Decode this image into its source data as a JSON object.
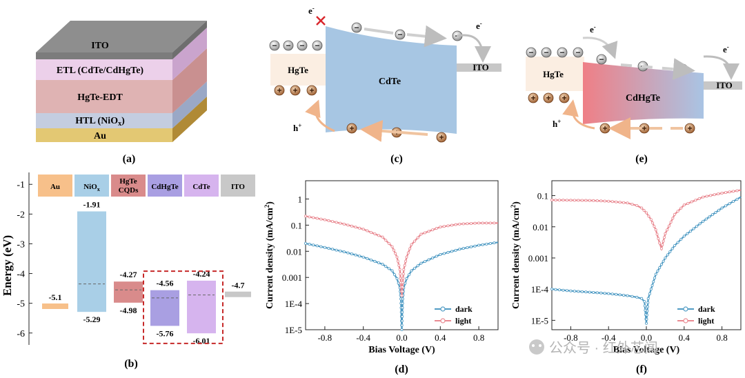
{
  "panel_labels": {
    "a": "(a)",
    "b": "(b)",
    "c": "(c)",
    "d": "(d)",
    "e": "(e)",
    "f": "(f)"
  },
  "stack_layers": [
    {
      "name": "ITO",
      "color": "#9a9a9a"
    },
    {
      "name": "ETL (CdTe/CdHgTe)",
      "color": "#e8c8e6"
    },
    {
      "name": "HgTe-EDT",
      "color": "#d8a8a8"
    },
    {
      "name": "HTL (NiO",
      "sub": "x",
      "suffix": ")",
      "color": "#c0c8dc"
    },
    {
      "name": "Au",
      "color": "#e7cf8c"
    }
  ],
  "schem_c": {
    "left": "HgTe",
    "middle": "CdTe",
    "right": "ITO",
    "electron": "e",
    "hole": "h",
    "minus": "−",
    "plus": "+",
    "sup_e": "-",
    "sup_h": "+"
  },
  "schem_e": {
    "left": "HgTe",
    "middle": "CdHgTe",
    "right": "ITO",
    "electron": "e",
    "hole": "h",
    "minus": "−",
    "plus": "+",
    "sup_e": "-",
    "sup_h": "+"
  },
  "watermark": "公众号 · 红外芯闻",
  "chart_data": [
    {
      "type": "bar",
      "id": "b",
      "ylabel": "Energy  (eV)",
      "ylim": [
        -6.4,
        -0.6
      ],
      "yticks": [
        -1,
        -2,
        -3,
        -4,
        -5,
        -6
      ],
      "header_labels": [
        {
          "text": "Au",
          "color": "#f7c08a"
        },
        {
          "text": "NiO",
          "sub": "x",
          "color": "#a9cfe7"
        },
        {
          "text": "HgTe",
          "text2": "CQDs",
          "color": "#d98b8b"
        },
        {
          "text": "CdHgTe",
          "color": "#a99fe2"
        },
        {
          "text": "CdTe",
          "color": "#d6b4ee"
        },
        {
          "text": "ITO",
          "color": "#c8c8c8"
        }
      ],
      "bars": [
        {
          "material": "Au",
          "level": -5.1,
          "label": "-5.1",
          "color": "#f7c08a"
        },
        {
          "material": "NiOx",
          "top": -1.91,
          "bottom": -5.29,
          "top_label": "-1.91",
          "bottom_label": "-5.29",
          "fermi": -4.35,
          "color": "#a9cfe7"
        },
        {
          "material": "HgTe CQDs",
          "top": -4.27,
          "bottom": -4.98,
          "top_label": "-4.27",
          "bottom_label": "-4.98",
          "fermi": -4.55,
          "color": "#d98b8b"
        },
        {
          "material": "CdHgTe",
          "top": -4.56,
          "bottom": -5.76,
          "top_label": "-4.56",
          "bottom_label": "-5.76",
          "fermi": -4.82,
          "color": "#a99fe2"
        },
        {
          "material": "CdTe",
          "top": -4.24,
          "bottom": -6.01,
          "top_label": "-4.24",
          "bottom_label": "-6.01",
          "fermi": -4.72,
          "color": "#d6b4ee"
        },
        {
          "material": "ITO",
          "level": -4.7,
          "label": "-4.7",
          "color": "#c8c8c8"
        }
      ]
    },
    {
      "type": "line",
      "id": "d",
      "xlabel": "Bias Voltage  (V)",
      "ylabel": "Current density  (mA/cm",
      "ylabel_sup": "2",
      "ylabel_end": ")",
      "log_y": true,
      "xlim": [
        -1.0,
        1.0
      ],
      "ylim": [
        1e-05,
        5
      ],
      "xticks": [
        -0.8,
        -0.4,
        0.0,
        0.4,
        0.8
      ],
      "xtick_labels": [
        "-0.8",
        "-0.4",
        "0.0",
        "0.4",
        "0.8"
      ],
      "yticks": [
        1,
        0.1,
        0.01,
        0.001,
        0.0001,
        1e-05
      ],
      "ytick_labels": [
        "1",
        "0.1",
        "0.01",
        "0.001",
        "1E-4",
        "1E-5"
      ],
      "legend_position": "lower-right",
      "series": [
        {
          "name": "dark",
          "color": "#4f9bc4",
          "x": [
            -1.0,
            -0.8,
            -0.6,
            -0.4,
            -0.2,
            -0.1,
            -0.05,
            -0.02,
            -0.01,
            0.0,
            0.01,
            0.02,
            0.05,
            0.1,
            0.2,
            0.4,
            0.6,
            0.8,
            1.0
          ],
          "y": [
            0.02,
            0.014,
            0.0095,
            0.006,
            0.0032,
            0.0018,
            0.0009,
            0.0004,
            0.00015,
            1e-05,
            0.00015,
            0.0004,
            0.0009,
            0.0018,
            0.0035,
            0.0075,
            0.012,
            0.017,
            0.022
          ]
        },
        {
          "name": "light",
          "color": "#e98a92",
          "x": [
            -1.0,
            -0.8,
            -0.6,
            -0.4,
            -0.2,
            -0.1,
            -0.05,
            -0.02,
            0.0,
            0.02,
            0.05,
            0.1,
            0.2,
            0.4,
            0.6,
            0.8,
            1.0
          ],
          "y": [
            0.22,
            0.16,
            0.11,
            0.07,
            0.035,
            0.015,
            0.006,
            0.002,
            0.0002,
            0.002,
            0.006,
            0.018,
            0.045,
            0.085,
            0.11,
            0.12,
            0.12
          ]
        }
      ]
    },
    {
      "type": "line",
      "id": "f",
      "xlabel": "Bias Voltage  (V)",
      "ylabel": "Current density  (mA/cm",
      "ylabel_sup": "2",
      "ylabel_end": ")",
      "log_y": true,
      "xlim": [
        -1.0,
        1.0
      ],
      "ylim": [
        5e-06,
        0.3
      ],
      "xticks": [
        -0.8,
        -0.4,
        0.0,
        0.4,
        0.8
      ],
      "xtick_labels": [
        "-0.8",
        "-0.4",
        "0.0",
        "0.4",
        "0.8"
      ],
      "yticks": [
        0.1,
        0.01,
        0.001,
        0.0001,
        1e-05
      ],
      "ytick_labels": [
        "0.1",
        "0.01",
        "0.001",
        "1E-4",
        "1E-5"
      ],
      "legend_position": "lower-right",
      "series": [
        {
          "name": "dark",
          "color": "#4f9bc4",
          "x": [
            -1.0,
            -0.8,
            -0.6,
            -0.4,
            -0.2,
            -0.1,
            -0.05,
            -0.02,
            0.0,
            0.02,
            0.05,
            0.1,
            0.2,
            0.3,
            0.4,
            0.6,
            0.8,
            1.0
          ],
          "y": [
            0.0001,
            8.8e-05,
            8e-05,
            7.2e-05,
            6.2e-05,
            5.5e-05,
            5e-05,
            4e-05,
            8e-06,
            5e-05,
            0.0001,
            0.0003,
            0.001,
            0.0025,
            0.005,
            0.015,
            0.04,
            0.09
          ]
        },
        {
          "name": "light",
          "color": "#e98a92",
          "x": [
            -1.0,
            -0.8,
            -0.6,
            -0.4,
            -0.2,
            -0.1,
            -0.05,
            0.0,
            0.05,
            0.1,
            0.14,
            0.16,
            0.2,
            0.3,
            0.4,
            0.6,
            0.8,
            1.0
          ],
          "y": [
            0.072,
            0.071,
            0.07,
            0.066,
            0.058,
            0.048,
            0.04,
            0.028,
            0.017,
            0.008,
            0.003,
            0.002,
            0.006,
            0.025,
            0.05,
            0.09,
            0.12,
            0.15
          ]
        }
      ]
    }
  ]
}
